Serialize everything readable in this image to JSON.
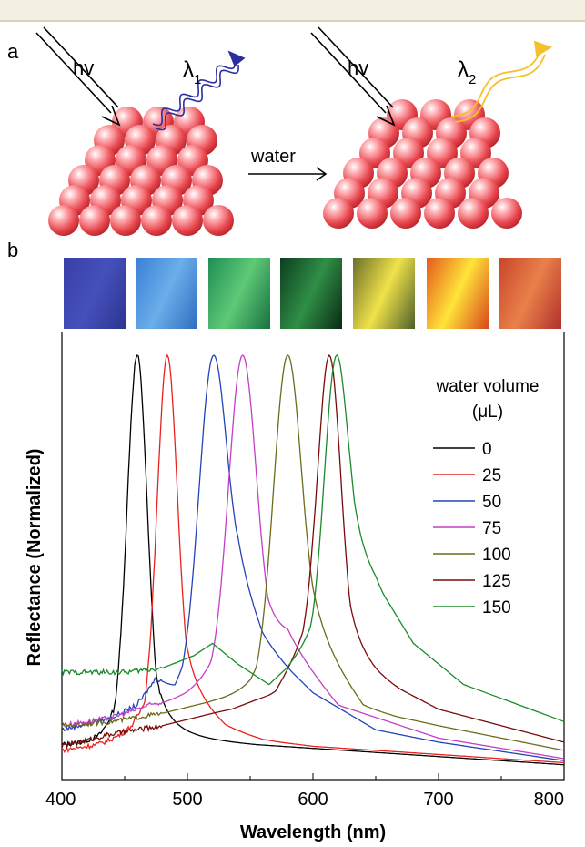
{
  "panel_a": {
    "letter": "a",
    "incident_label_left": "hv",
    "incident_label_right": "hv",
    "emission_label_left_main": "λ",
    "emission_label_left_sub": "1",
    "emission_label_right_main": "λ",
    "emission_label_right_sub": "2",
    "arrow_label": "water",
    "colors": {
      "sphere": "#e8474e",
      "emission_left": "#2b2f9e",
      "emission_right": "#f5c12a"
    }
  },
  "panel_b": {
    "letter": "b",
    "swatches": [
      {
        "name": "swatch-0",
        "colors": [
          "#3a3fa8",
          "#4550bb",
          "#2d3590"
        ]
      },
      {
        "name": "swatch-25",
        "colors": [
          "#3a7fd6",
          "#6aaeea",
          "#2f6cc0"
        ]
      },
      {
        "name": "swatch-50",
        "colors": [
          "#1f8e54",
          "#5fc977",
          "#167040"
        ]
      },
      {
        "name": "swatch-75",
        "colors": [
          "#0d3d1f",
          "#2f8f46",
          "#0a2a14"
        ]
      },
      {
        "name": "swatch-100",
        "colors": [
          "#6b6f2a",
          "#f0e24a",
          "#4f5f2a"
        ]
      },
      {
        "name": "swatch-125",
        "colors": [
          "#e45a1a",
          "#ffe43a",
          "#d8471a"
        ]
      },
      {
        "name": "swatch-150",
        "colors": [
          "#c8462a",
          "#e9804a",
          "#b0302a"
        ]
      }
    ]
  },
  "chart_data": {
    "type": "line",
    "xlabel": "Wavelength (nm)",
    "ylabel": "Reflectance (Normalized)",
    "xlim": [
      400,
      800
    ],
    "ylim": [
      0,
      1
    ],
    "xticks": [
      "400",
      "500",
      "600",
      "700",
      "800"
    ],
    "legend_title_line1": "water volume",
    "legend_title_line2": "(μL)",
    "legend_position": "top-right",
    "grid": false,
    "series": [
      {
        "name": "0",
        "color": "#000000",
        "base": 0.0,
        "peak_x": 460,
        "width": 8,
        "tail": [
          [
            400,
            0.05
          ],
          [
            430,
            0.05
          ],
          [
            445,
            0.08
          ],
          [
            480,
            0.07
          ],
          [
            500,
            0.065
          ],
          [
            600,
            0.045
          ],
          [
            700,
            0.025
          ],
          [
            800,
            0.005
          ]
        ]
      },
      {
        "name": "25",
        "color": "#e8231f",
        "base": 0.0,
        "peak_x": 484,
        "width": 8,
        "tail": [
          [
            400,
            0.04
          ],
          [
            430,
            0.05
          ],
          [
            455,
            0.07
          ],
          [
            470,
            0.1
          ],
          [
            500,
            0.16
          ],
          [
            530,
            0.09
          ],
          [
            560,
            0.065
          ],
          [
            600,
            0.05
          ],
          [
            700,
            0.03
          ],
          [
            800,
            0.01
          ]
        ]
      },
      {
        "name": "50",
        "color": "#2443b8",
        "base": 0.0,
        "peak_x": 521,
        "width": 11,
        "tail": [
          [
            400,
            0.09
          ],
          [
            440,
            0.12
          ],
          [
            460,
            0.15
          ],
          [
            475,
            0.21
          ],
          [
            490,
            0.16
          ],
          [
            505,
            0.22
          ],
          [
            540,
            0.43
          ],
          [
            560,
            0.3
          ],
          [
            600,
            0.18
          ],
          [
            650,
            0.09
          ],
          [
            700,
            0.06
          ],
          [
            800,
            0.015
          ]
        ]
      },
      {
        "name": "75",
        "color": "#c23fc6",
        "base": 0.0,
        "peak_x": 544,
        "width": 11,
        "tail": [
          [
            400,
            0.1
          ],
          [
            440,
            0.12
          ],
          [
            470,
            0.15
          ],
          [
            500,
            0.17
          ],
          [
            520,
            0.2
          ],
          [
            580,
            0.3
          ],
          [
            620,
            0.15
          ],
          [
            700,
            0.07
          ],
          [
            800,
            0.02
          ]
        ]
      },
      {
        "name": "100",
        "color": "#6b6b1a",
        "base": 0.0,
        "peak_x": 580,
        "width": 11,
        "tail": [
          [
            400,
            0.1
          ],
          [
            440,
            0.11
          ],
          [
            480,
            0.13
          ],
          [
            520,
            0.16
          ],
          [
            550,
            0.17
          ],
          [
            600,
            0.3
          ],
          [
            640,
            0.14
          ],
          [
            700,
            0.1
          ],
          [
            800,
            0.04
          ]
        ]
      },
      {
        "name": "125",
        "color": "#7a0a0a",
        "base": 0.0,
        "peak_x": 613,
        "width": 9,
        "tail": [
          [
            400,
            0.05
          ],
          [
            440,
            0.08
          ],
          [
            480,
            0.1
          ],
          [
            520,
            0.13
          ],
          [
            535,
            0.14
          ],
          [
            570,
            0.18
          ],
          [
            600,
            0.32
          ],
          [
            650,
            0.22
          ],
          [
            700,
            0.14
          ],
          [
            800,
            0.06
          ]
        ]
      },
      {
        "name": "150",
        "color": "#1a8a2a",
        "base": 0.0,
        "peak_x": 619,
        "width": 9,
        "tail": [
          [
            400,
            0.23
          ],
          [
            450,
            0.23
          ],
          [
            480,
            0.24
          ],
          [
            505,
            0.27
          ],
          [
            520,
            0.3
          ],
          [
            540,
            0.25
          ],
          [
            565,
            0.2
          ],
          [
            600,
            0.3
          ],
          [
            630,
            0.5
          ],
          [
            650,
            0.45
          ],
          [
            680,
            0.3
          ],
          [
            720,
            0.2
          ],
          [
            800,
            0.11
          ]
        ]
      }
    ]
  }
}
